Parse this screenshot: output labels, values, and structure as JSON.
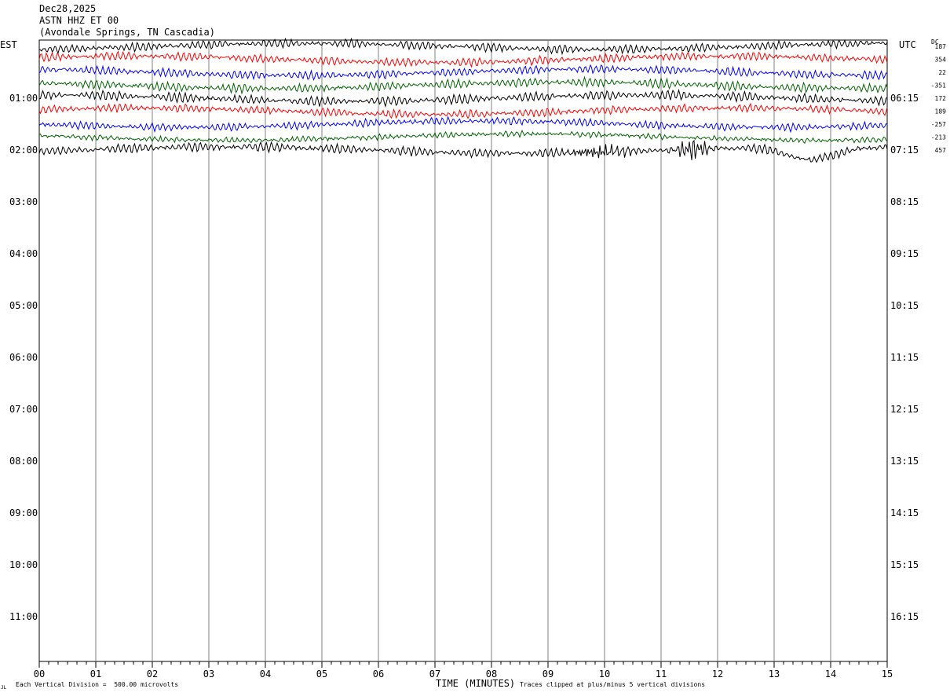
{
  "header": {
    "date": "Dec28,2025",
    "station": "ASTN HHZ ET 00",
    "location": "(Avondale Springs, TN Cascadia)"
  },
  "chart_data": {
    "type": "line",
    "left_timezone": "EST",
    "right_timezone": "UTC",
    "dc_header": "DC",
    "xlabel": "TIME (MINUTES)",
    "xlim": [
      0,
      15
    ],
    "x_ticks": [
      "00",
      "01",
      "02",
      "03",
      "04",
      "05",
      "06",
      "07",
      "08",
      "09",
      "10",
      "11",
      "12",
      "13",
      "14",
      "15"
    ],
    "left_hour_labels": [
      "01:00",
      "02:00",
      "03:00",
      "04:00",
      "05:00",
      "06:00",
      "07:00",
      "08:00",
      "09:00",
      "10:00",
      "11:00"
    ],
    "right_hour_labels": [
      "06:15",
      "07:15",
      "08:15",
      "09:15",
      "10:15",
      "11:15",
      "12:15",
      "13:15",
      "14:15",
      "15:15",
      "16:15"
    ],
    "rows_per_hour": 4,
    "trace_colors": [
      "#000000",
      "#ff0000",
      "#0000ff",
      "#006400"
    ],
    "dc_offsets": [
      "187",
      "354",
      "22",
      "-351",
      "172",
      "189",
      "-257",
      "-213",
      "457"
    ],
    "footer_left": "Each Vertical Division =  500.00 microvolts",
    "footer_right": "Traces clipped at plus/minus 5 vertical divisions",
    "corner_mark": "JL"
  }
}
